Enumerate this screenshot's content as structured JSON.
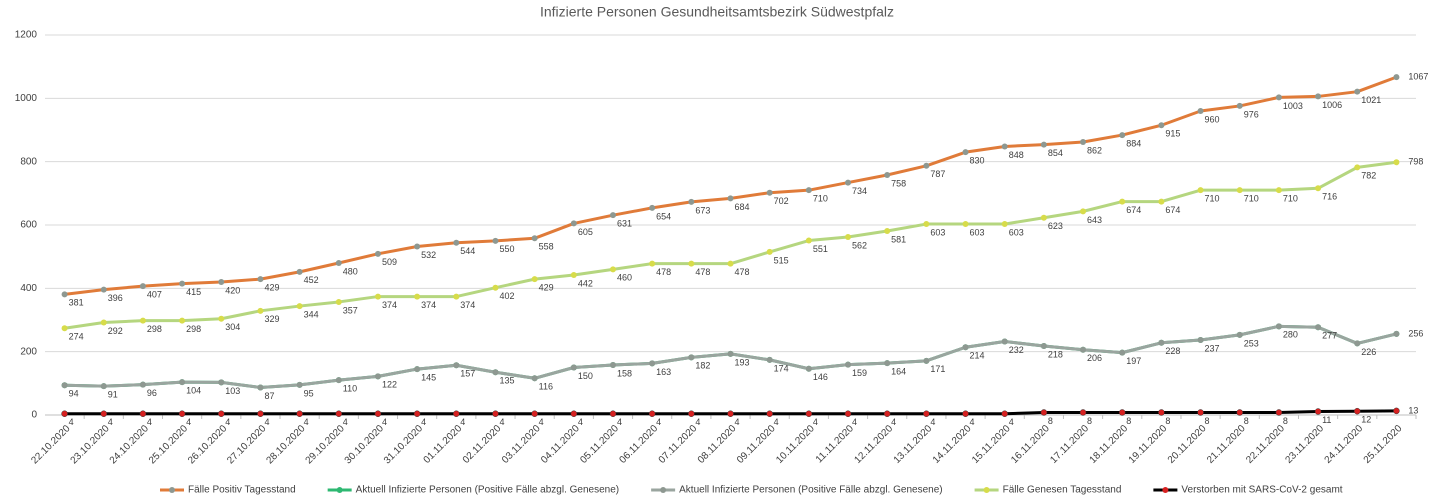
{
  "chart_data": {
    "type": "line",
    "title": "Infizierte Personen Gesundheitsamtsbezirk Südwestpfalz",
    "categories": [
      "22.10.2020",
      "23.10.2020",
      "24.10.2020",
      "25.10.2020",
      "26.10.2020",
      "27.10.2020",
      "28.10.2020",
      "29.10.2020",
      "30.10.2020",
      "31.10.2020",
      "01.11.2020",
      "02.11.2020",
      "03.11.2020",
      "04.11.2020",
      "05.11.2020",
      "06.11.2020",
      "07.11.2020",
      "08.11.2020",
      "09.11.2020",
      "10.11.2020",
      "11.11.2020",
      "12.11.2020",
      "13.11.2020",
      "14.11.2020",
      "15.11.2020",
      "16.11.2020",
      "17.11.2020",
      "18.11.2020",
      "19.11.2020",
      "20.11.2020",
      "21.11.2020",
      "22.11.2020",
      "23.11.2020",
      "24.11.2020",
      "25.11.2020"
    ],
    "series": [
      {
        "name": "Fälle Positiv Tagesstand",
        "color": "#e07b39",
        "marker_color": "#8e9891",
        "values": [
          381,
          396,
          407,
          415,
          420,
          429,
          452,
          480,
          509,
          532,
          544,
          550,
          558,
          605,
          631,
          654,
          673,
          684,
          702,
          710,
          734,
          758,
          787,
          830,
          848,
          854,
          862,
          884,
          915,
          960,
          976,
          1003,
          1006,
          1021,
          1067
        ]
      },
      {
        "name": "Aktuell Infizierte Personen (Positive Fälle abzgl. Genesene)",
        "color": "#2eb872",
        "marker_color": "#2eb872",
        "values": [
          94,
          91,
          96,
          104,
          103,
          87,
          95,
          110,
          122,
          145,
          157,
          135,
          116,
          150,
          158,
          163,
          182,
          193,
          174,
          146,
          159,
          164,
          171,
          214,
          232,
          218,
          206,
          197,
          228,
          237,
          253,
          280,
          277,
          226,
          256
        ]
      },
      {
        "name": "Aktuell Infizierte Personen (Positive Fälle abzgl. Genesene)",
        "color": "#9aa59f",
        "marker_color": "#8e9891",
        "values": [
          94,
          91,
          96,
          104,
          103,
          87,
          95,
          110,
          122,
          145,
          157,
          135,
          116,
          150,
          158,
          163,
          182,
          193,
          174,
          146,
          159,
          164,
          171,
          214,
          232,
          218,
          206,
          197,
          228,
          237,
          253,
          280,
          277,
          226,
          256
        ]
      },
      {
        "name": "Fälle Genesen Tagesstand",
        "color": "#b5d67f",
        "marker_color": "#d7dc4a",
        "values": [
          274,
          292,
          298,
          298,
          304,
          329,
          344,
          357,
          374,
          374,
          374,
          402,
          429,
          442,
          460,
          478,
          478,
          478,
          515,
          551,
          562,
          581,
          603,
          603,
          603,
          623,
          643,
          674,
          674,
          710,
          710,
          710,
          716,
          782,
          798
        ]
      },
      {
        "name": "Verstorben mit SARS-CoV-2 gesamt",
        "color": "#000000",
        "marker_color": "#d62020",
        "values": [
          4,
          4,
          4,
          4,
          4,
          4,
          4,
          4,
          4,
          4,
          4,
          4,
          4,
          4,
          4,
          4,
          4,
          4,
          4,
          4,
          4,
          4,
          4,
          4,
          4,
          8,
          8,
          8,
          8,
          8,
          8,
          8,
          11,
          12,
          13
        ]
      }
    ],
    "ylim": [
      0,
      1200
    ],
    "yticks": [
      0,
      200,
      400,
      600,
      800,
      1000,
      1200
    ],
    "grid": true,
    "legend": "bottom"
  }
}
